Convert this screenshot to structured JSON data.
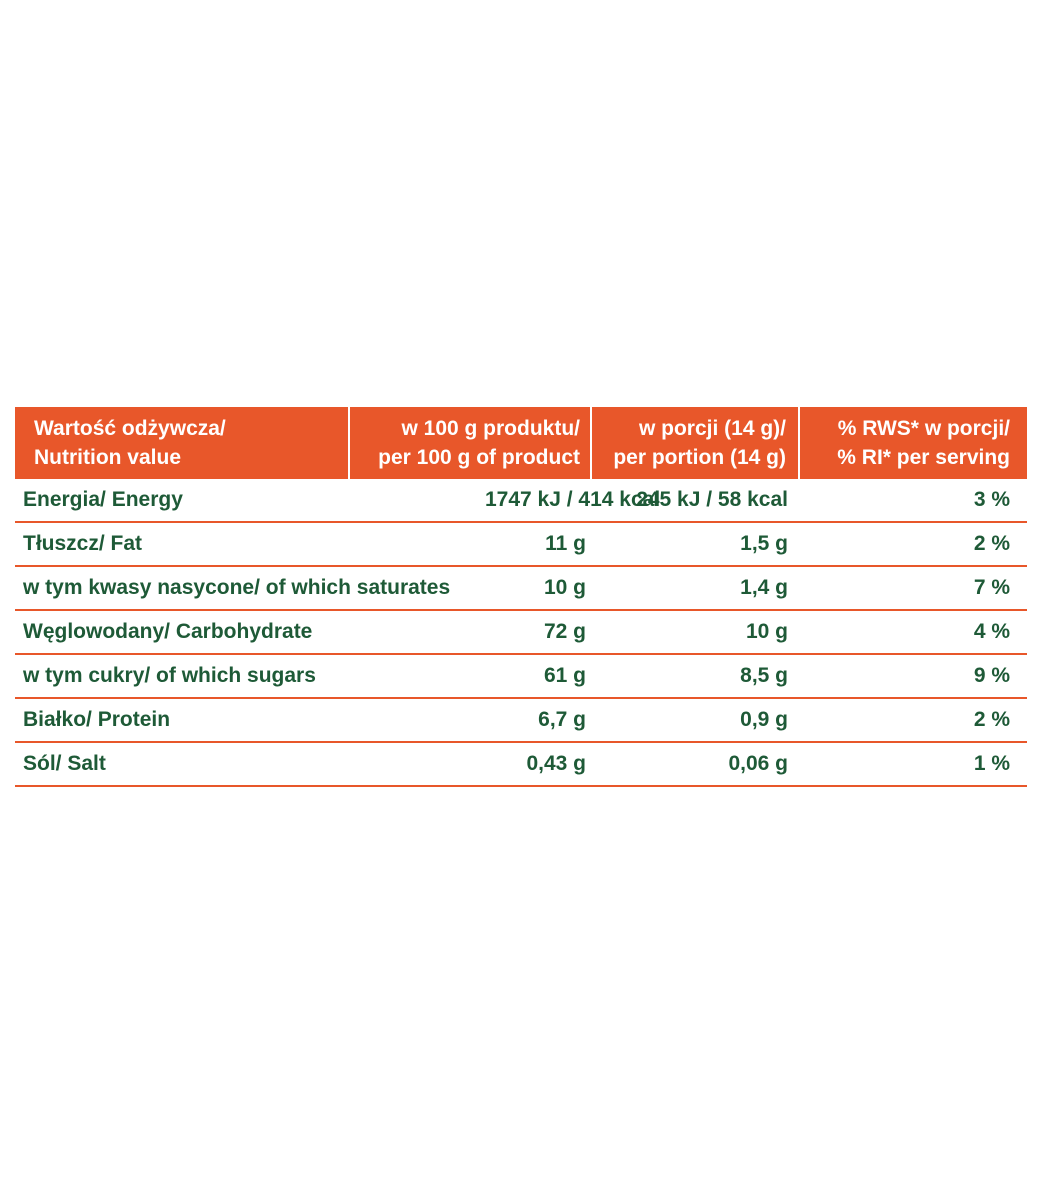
{
  "colors": {
    "header_bg": "#e8572a",
    "header_text": "#ffffff",
    "body_text": "#1e5a37",
    "rule": "#e8572a"
  },
  "header": {
    "col1": [
      "Wartość odżywcza/",
      "Nutrition value"
    ],
    "col2": [
      "w 100 g produktu/",
      "per 100 g of product"
    ],
    "col3": [
      "w porcji (14 g)/",
      "per portion (14 g)"
    ],
    "col4": [
      "% RWS* w porcji/",
      "% RI* per serving"
    ]
  },
  "rows": [
    {
      "name": "Energia/ Energy",
      "per100": "1747 kJ / 414 kcal",
      "portion": "245 kJ / 58 kcal",
      "ri": "3 %"
    },
    {
      "name": "Tłuszcz/ Fat",
      "per100": "11 g",
      "portion": "1,5 g",
      "ri": "2 %"
    },
    {
      "name": "w tym kwasy nasycone/ of which saturates",
      "per100": "10 g",
      "portion": "1,4 g",
      "ri": "7 %"
    },
    {
      "name": "Węglowodany/ Carbohydrate",
      "per100": "72 g",
      "portion": "10 g",
      "ri": "4 %"
    },
    {
      "name": "w tym cukry/ of which sugars",
      "per100": "61 g",
      "portion": "8,5 g",
      "ri": "9 %"
    },
    {
      "name": "Białko/ Protein",
      "per100": "6,7 g",
      "portion": "0,9 g",
      "ri": "2 %"
    },
    {
      "name": "Sól/ Salt",
      "per100": "0,43 g",
      "portion": "0,06 g",
      "ri": "1 %"
    }
  ]
}
